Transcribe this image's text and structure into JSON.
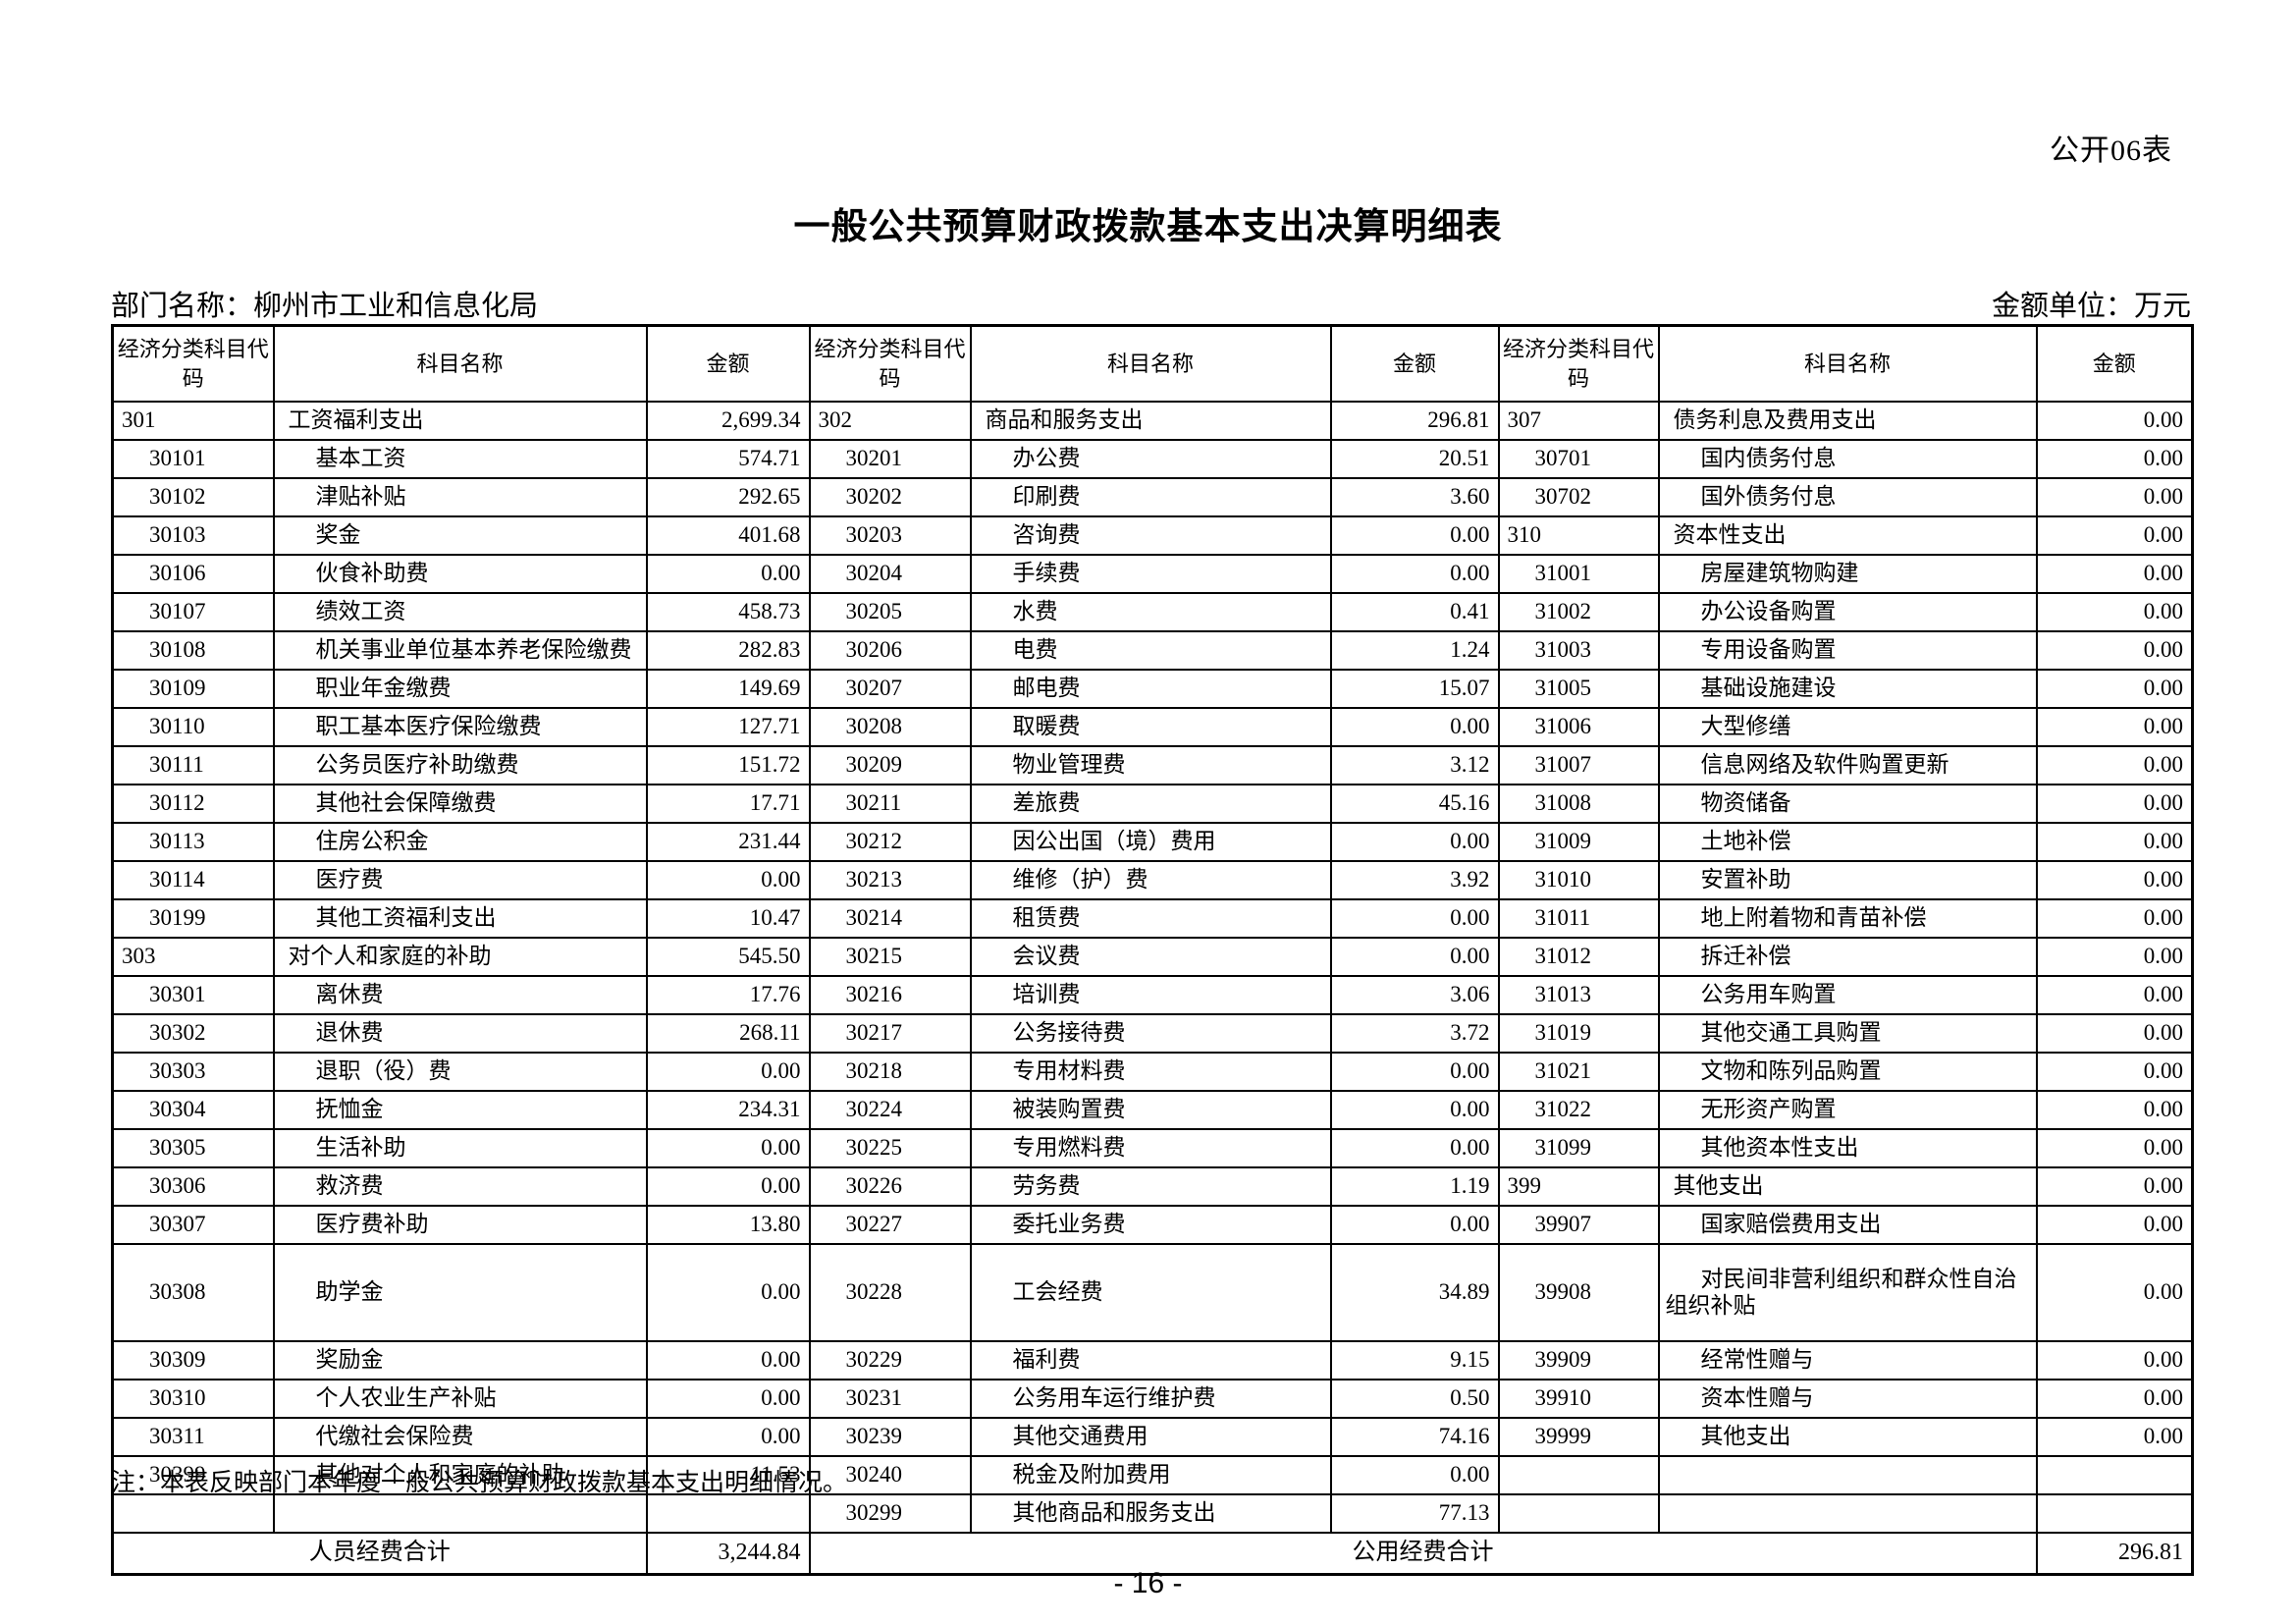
{
  "page": {
    "form_label": "公开06表",
    "title": "一般公共预算财政拨款基本支出决算明细表",
    "department_label": "部门名称：柳州市工业和信息化局",
    "unit_label": "金额单位：万元",
    "note": "注：本表反映部门本年度一般公共预算财政拨款基本支出明细情况。",
    "page_number": "- 16 -"
  },
  "table": {
    "header": {
      "code": "经济分类科目代码",
      "name": "科目名称",
      "amount": "金额"
    },
    "rows": [
      {
        "cells": [
          {
            "code": "301",
            "name": "工资福利支出",
            "amount": "2,699.34",
            "level": 1
          },
          {
            "code": "302",
            "name": "商品和服务支出",
            "amount": "296.81",
            "level": 1
          },
          {
            "code": "307",
            "name": "债务利息及费用支出",
            "amount": "0.00",
            "level": 1
          }
        ]
      },
      {
        "cells": [
          {
            "code": "30101",
            "name": "基本工资",
            "amount": "574.71",
            "level": 2
          },
          {
            "code": "30201",
            "name": "办公费",
            "amount": "20.51",
            "level": 2
          },
          {
            "code": "30701",
            "name": "国内债务付息",
            "amount": "0.00",
            "level": 2
          }
        ]
      },
      {
        "cells": [
          {
            "code": "30102",
            "name": "津贴补贴",
            "amount": "292.65",
            "level": 2
          },
          {
            "code": "30202",
            "name": "印刷费",
            "amount": "3.60",
            "level": 2
          },
          {
            "code": "30702",
            "name": "国外债务付息",
            "amount": "0.00",
            "level": 2
          }
        ]
      },
      {
        "cells": [
          {
            "code": "30103",
            "name": "奖金",
            "amount": "401.68",
            "level": 2
          },
          {
            "code": "30203",
            "name": "咨询费",
            "amount": "0.00",
            "level": 2
          },
          {
            "code": "310",
            "name": "资本性支出",
            "amount": "0.00",
            "level": 1
          }
        ]
      },
      {
        "cells": [
          {
            "code": "30106",
            "name": "伙食补助费",
            "amount": "0.00",
            "level": 2
          },
          {
            "code": "30204",
            "name": "手续费",
            "amount": "0.00",
            "level": 2
          },
          {
            "code": "31001",
            "name": "房屋建筑物购建",
            "amount": "0.00",
            "level": 2
          }
        ]
      },
      {
        "cells": [
          {
            "code": "30107",
            "name": "绩效工资",
            "amount": "458.73",
            "level": 2
          },
          {
            "code": "30205",
            "name": "水费",
            "amount": "0.41",
            "level": 2
          },
          {
            "code": "31002",
            "name": "办公设备购置",
            "amount": "0.00",
            "level": 2
          }
        ]
      },
      {
        "cells": [
          {
            "code": "30108",
            "name": "机关事业单位基本养老保险缴费",
            "amount": "282.83",
            "level": 2
          },
          {
            "code": "30206",
            "name": "电费",
            "amount": "1.24",
            "level": 2
          },
          {
            "code": "31003",
            "name": "专用设备购置",
            "amount": "0.00",
            "level": 2
          }
        ]
      },
      {
        "cells": [
          {
            "code": "30109",
            "name": "职业年金缴费",
            "amount": "149.69",
            "level": 2
          },
          {
            "code": "30207",
            "name": "邮电费",
            "amount": "15.07",
            "level": 2
          },
          {
            "code": "31005",
            "name": "基础设施建设",
            "amount": "0.00",
            "level": 2
          }
        ]
      },
      {
        "cells": [
          {
            "code": "30110",
            "name": "职工基本医疗保险缴费",
            "amount": "127.71",
            "level": 2
          },
          {
            "code": "30208",
            "name": "取暖费",
            "amount": "0.00",
            "level": 2
          },
          {
            "code": "31006",
            "name": "大型修缮",
            "amount": "0.00",
            "level": 2
          }
        ]
      },
      {
        "cells": [
          {
            "code": "30111",
            "name": "公务员医疗补助缴费",
            "amount": "151.72",
            "level": 2
          },
          {
            "code": "30209",
            "name": "物业管理费",
            "amount": "3.12",
            "level": 2
          },
          {
            "code": "31007",
            "name": "信息网络及软件购置更新",
            "amount": "0.00",
            "level": 2
          }
        ]
      },
      {
        "cells": [
          {
            "code": "30112",
            "name": "其他社会保障缴费",
            "amount": "17.71",
            "level": 2
          },
          {
            "code": "30211",
            "name": "差旅费",
            "amount": "45.16",
            "level": 2
          },
          {
            "code": "31008",
            "name": "物资储备",
            "amount": "0.00",
            "level": 2
          }
        ]
      },
      {
        "cells": [
          {
            "code": "30113",
            "name": "住房公积金",
            "amount": "231.44",
            "level": 2
          },
          {
            "code": "30212",
            "name": "因公出国（境）费用",
            "amount": "0.00",
            "level": 2
          },
          {
            "code": "31009",
            "name": "土地补偿",
            "amount": "0.00",
            "level": 2
          }
        ]
      },
      {
        "cells": [
          {
            "code": "30114",
            "name": "医疗费",
            "amount": "0.00",
            "level": 2
          },
          {
            "code": "30213",
            "name": "维修（护）费",
            "amount": "3.92",
            "level": 2
          },
          {
            "code": "31010",
            "name": "安置补助",
            "amount": "0.00",
            "level": 2
          }
        ]
      },
      {
        "cells": [
          {
            "code": "30199",
            "name": "其他工资福利支出",
            "amount": "10.47",
            "level": 2
          },
          {
            "code": "30214",
            "name": "租赁费",
            "amount": "0.00",
            "level": 2
          },
          {
            "code": "31011",
            "name": "地上附着物和青苗补偿",
            "amount": "0.00",
            "level": 2
          }
        ]
      },
      {
        "cells": [
          {
            "code": "303",
            "name": "对个人和家庭的补助",
            "amount": "545.50",
            "level": 1
          },
          {
            "code": "30215",
            "name": "会议费",
            "amount": "0.00",
            "level": 2
          },
          {
            "code": "31012",
            "name": "拆迁补偿",
            "amount": "0.00",
            "level": 2
          }
        ]
      },
      {
        "cells": [
          {
            "code": "30301",
            "name": "离休费",
            "amount": "17.76",
            "level": 2
          },
          {
            "code": "30216",
            "name": "培训费",
            "amount": "3.06",
            "level": 2
          },
          {
            "code": "31013",
            "name": "公务用车购置",
            "amount": "0.00",
            "level": 2
          }
        ]
      },
      {
        "cells": [
          {
            "code": "30302",
            "name": "退休费",
            "amount": "268.11",
            "level": 2
          },
          {
            "code": "30217",
            "name": "公务接待费",
            "amount": "3.72",
            "level": 2
          },
          {
            "code": "31019",
            "name": "其他交通工具购置",
            "amount": "0.00",
            "level": 2
          }
        ]
      },
      {
        "cells": [
          {
            "code": "30303",
            "name": "退职（役）费",
            "amount": "0.00",
            "level": 2
          },
          {
            "code": "30218",
            "name": "专用材料费",
            "amount": "0.00",
            "level": 2
          },
          {
            "code": "31021",
            "name": "文物和陈列品购置",
            "amount": "0.00",
            "level": 2
          }
        ]
      },
      {
        "cells": [
          {
            "code": "30304",
            "name": "抚恤金",
            "amount": "234.31",
            "level": 2
          },
          {
            "code": "30224",
            "name": "被装购置费",
            "amount": "0.00",
            "level": 2
          },
          {
            "code": "31022",
            "name": "无形资产购置",
            "amount": "0.00",
            "level": 2
          }
        ]
      },
      {
        "cells": [
          {
            "code": "30305",
            "name": "生活补助",
            "amount": "0.00",
            "level": 2
          },
          {
            "code": "30225",
            "name": "专用燃料费",
            "amount": "0.00",
            "level": 2
          },
          {
            "code": "31099",
            "name": "其他资本性支出",
            "amount": "0.00",
            "level": 2
          }
        ]
      },
      {
        "cells": [
          {
            "code": "30306",
            "name": "救济费",
            "amount": "0.00",
            "level": 2
          },
          {
            "code": "30226",
            "name": "劳务费",
            "amount": "1.19",
            "level": 2
          },
          {
            "code": "399",
            "name": "其他支出",
            "amount": "0.00",
            "level": 1
          }
        ]
      },
      {
        "cells": [
          {
            "code": "30307",
            "name": "医疗费补助",
            "amount": "13.80",
            "level": 2
          },
          {
            "code": "30227",
            "name": "委托业务费",
            "amount": "0.00",
            "level": 2
          },
          {
            "code": "39907",
            "name": "国家赔偿费用支出",
            "amount": "0.00",
            "level": 2
          }
        ]
      },
      {
        "tall": true,
        "cells": [
          {
            "code": "30308",
            "name": "助学金",
            "amount": "0.00",
            "level": 2
          },
          {
            "code": "30228",
            "name": "工会经费",
            "amount": "34.89",
            "level": 2
          },
          {
            "code": "39908",
            "name": "对民间非营利组织和群众性自治组织补贴",
            "amount": "0.00",
            "level": 2,
            "wrap": true
          }
        ]
      },
      {
        "cells": [
          {
            "code": "30309",
            "name": "奖励金",
            "amount": "0.00",
            "level": 2
          },
          {
            "code": "30229",
            "name": "福利费",
            "amount": "9.15",
            "level": 2
          },
          {
            "code": "39909",
            "name": "经常性赠与",
            "amount": "0.00",
            "level": 2
          }
        ]
      },
      {
        "cells": [
          {
            "code": "30310",
            "name": "个人农业生产补贴",
            "amount": "0.00",
            "level": 2
          },
          {
            "code": "30231",
            "name": "公务用车运行维护费",
            "amount": "0.50",
            "level": 2
          },
          {
            "code": "39910",
            "name": "资本性赠与",
            "amount": "0.00",
            "level": 2
          }
        ]
      },
      {
        "cells": [
          {
            "code": "30311",
            "name": "代缴社会保险费",
            "amount": "0.00",
            "level": 2
          },
          {
            "code": "30239",
            "name": "其他交通费用",
            "amount": "74.16",
            "level": 2
          },
          {
            "code": "39999",
            "name": "其他支出",
            "amount": "0.00",
            "level": 2
          }
        ]
      },
      {
        "cells": [
          {
            "code": "30399",
            "name": "其他对个人和家庭的补助",
            "amount": "11.53",
            "level": 2
          },
          {
            "code": "30240",
            "name": "税金及附加费用",
            "amount": "0.00",
            "level": 2
          },
          {
            "code": "",
            "name": "",
            "amount": "",
            "level": 2
          }
        ]
      },
      {
        "cells": [
          {
            "code": "",
            "name": "",
            "amount": "",
            "level": 2
          },
          {
            "code": "30299",
            "name": "其他商品和服务支出",
            "amount": "77.13",
            "level": 2
          },
          {
            "code": "",
            "name": "",
            "amount": "",
            "level": 2
          }
        ]
      }
    ],
    "totals": {
      "left_label": "人员经费合计",
      "left_amount": "3,244.84",
      "right_label": "公用经费合计",
      "right_amount": "296.81"
    }
  }
}
